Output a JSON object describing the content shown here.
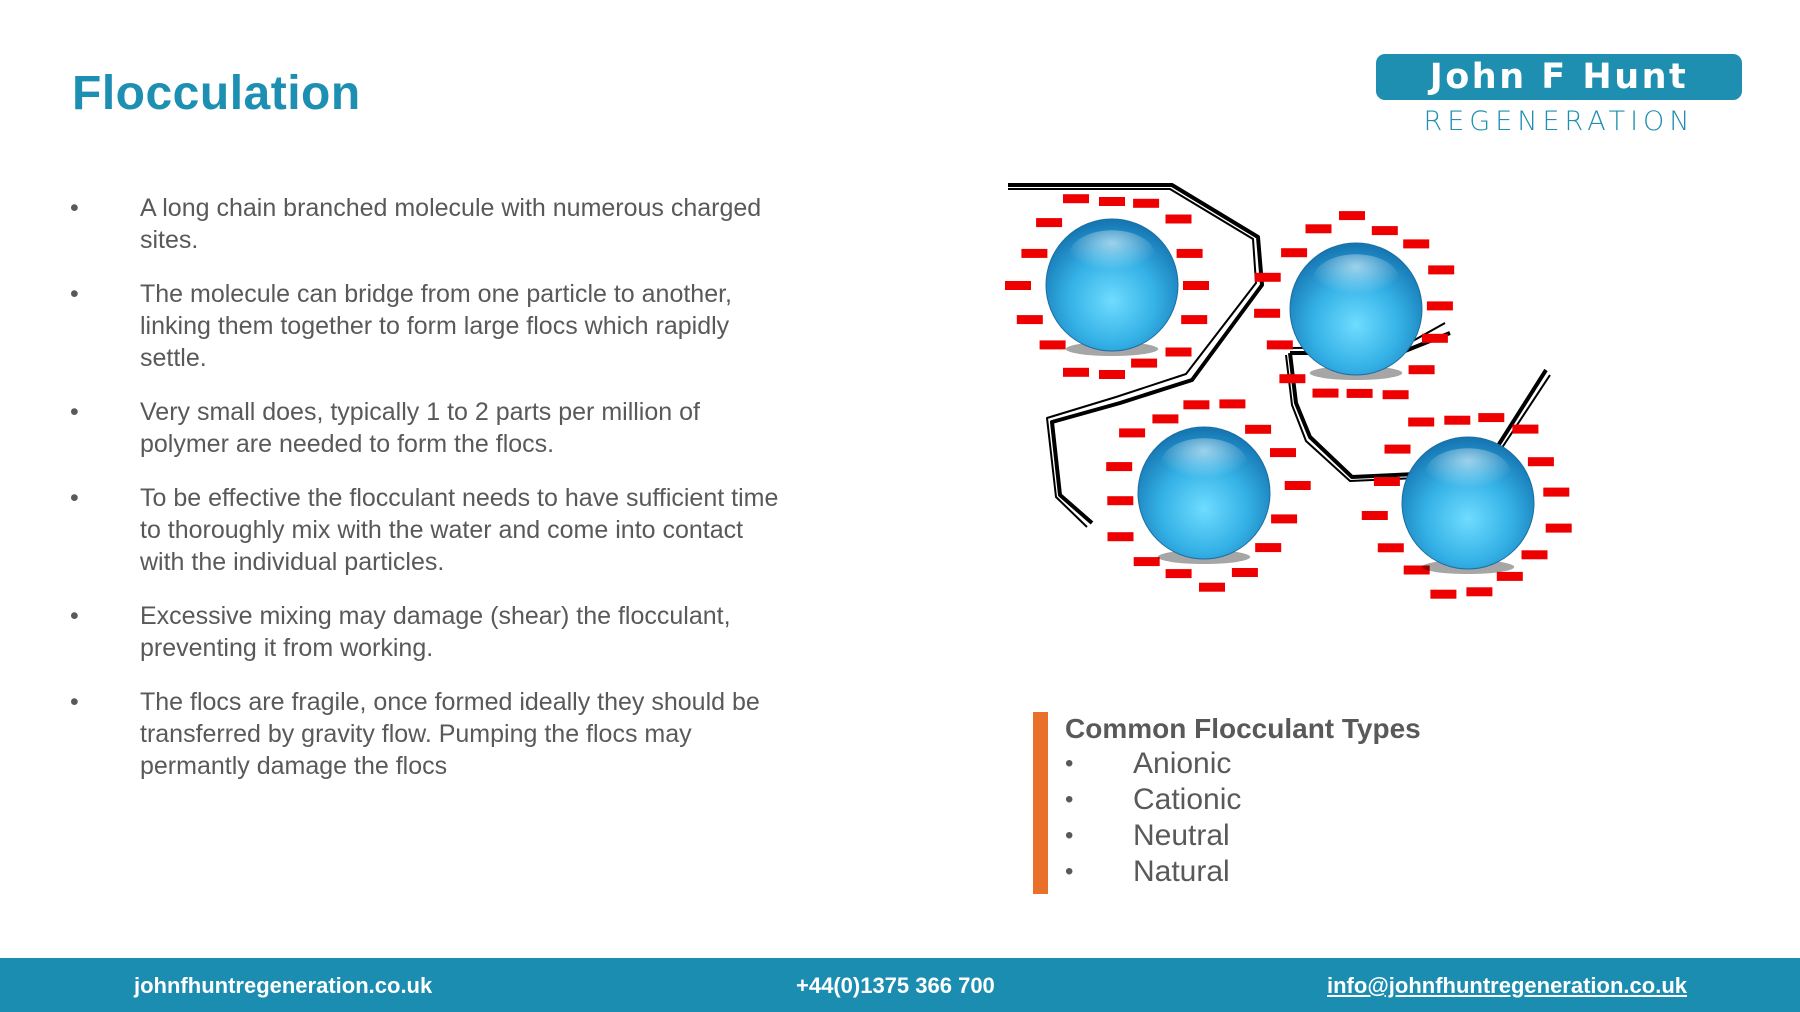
{
  "slide": {
    "title": "Flocculation",
    "bullets": [
      "A long chain branched molecule with numerous charged sites.",
      "The molecule can bridge from one particle to another, linking them together to form large flocs which rapidly settle.",
      "Very small does, typically 1 to 2 parts per million of polymer are needed to form the flocs.",
      "To be effective the flocculant needs to have sufficient time to thoroughly mix with the water and come into contact with the individual particles.",
      "Excessive mixing may damage (shear) the flocculant, preventing it from working.",
      "The flocs are fragile, once formed ideally they should be transferred by gravity flow.  Pumping the flocs may permantly damage the flocs"
    ],
    "bullet_char": "•"
  },
  "logo": {
    "line1": "John F Hunt",
    "line2": "REGENERATION"
  },
  "callout": {
    "title": "Common Flocculant Types",
    "items": [
      "Anionic",
      "Cationic",
      "Neutral",
      "Natural"
    ]
  },
  "footer": {
    "website": "johnfhuntregeneration.co.uk",
    "phone": "+44(0)1375 366 700",
    "email": "info@johnfhuntregeneration.co.uk"
  },
  "colors": {
    "brand": "#1d8fb3",
    "accent": "#e8702a",
    "text": "#595959",
    "charge": "#ee0000",
    "particle": "#39b0e6"
  },
  "diagram": {
    "particle_count": 4,
    "charge_type": "negative"
  }
}
